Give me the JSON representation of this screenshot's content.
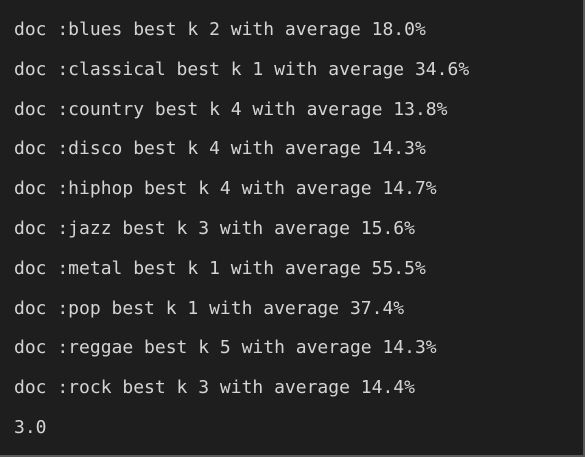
{
  "terminal": {
    "lines": [
      "doc :blues best k 2 with average 18.0%",
      "doc :classical best k 1 with average 34.6%",
      "doc :country best k 4 with average 13.8%",
      "doc :disco best k 4 with average 14.3%",
      "doc :hiphop best k 4 with average 14.7%",
      "doc :jazz best k 3 with average 15.6%",
      "doc :metal best k 1 with average 55.5%",
      "doc :pop best k 1 with average 37.4%",
      "doc :reggae best k 5 with average 14.3%",
      "doc :rock best k 3 with average 14.4%",
      "3.0"
    ]
  },
  "colors": {
    "background": "#1e1e1e",
    "text": "#d4d4d4",
    "border": "#5a5a5a"
  }
}
